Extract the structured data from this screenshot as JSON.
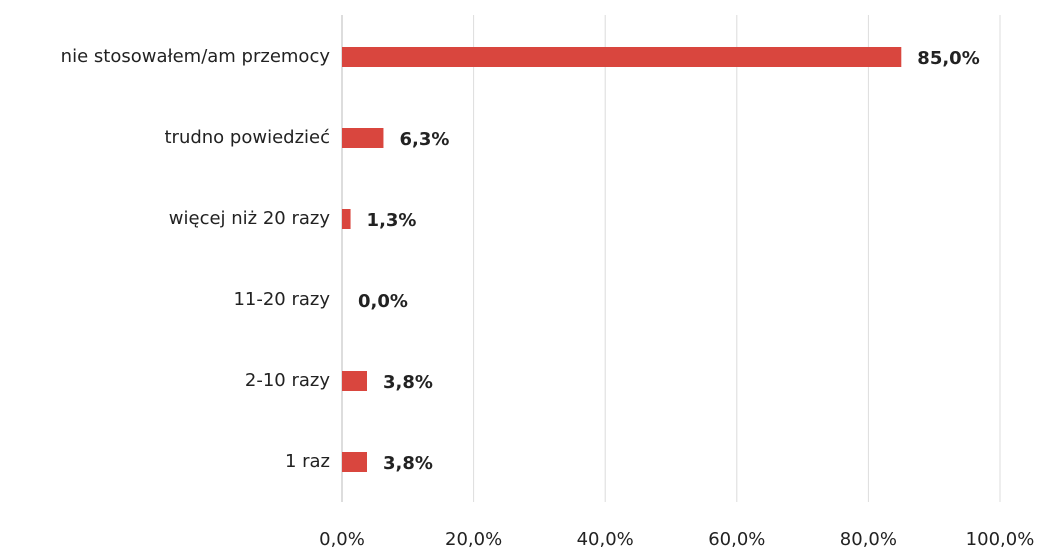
{
  "chart_data": {
    "type": "barh",
    "categories": [
      "nie stosowałem/am przemocy",
      "trudno powiedzieć",
      "więcej niż 20 razy",
      "11-20 razy",
      "2-10 razy",
      "1 raz"
    ],
    "values": [
      85.0,
      6.3,
      1.3,
      0.0,
      3.8,
      3.8
    ],
    "value_labels": [
      "85,0%",
      "6,3%",
      "1,3%",
      "0,0%",
      "3,8%",
      "3,8%"
    ],
    "color": "#d9463e",
    "xlim": [
      0,
      100
    ],
    "xticks": [
      {
        "value": 0,
        "label": "0,0%"
      },
      {
        "value": 20,
        "label": "20,0%"
      },
      {
        "value": 40,
        "label": "40,0%"
      },
      {
        "value": 60,
        "label": "60,0%"
      },
      {
        "value": 80,
        "label": "80,0%"
      },
      {
        "value": 100,
        "label": "100,0%"
      }
    ],
    "grid": true
  }
}
